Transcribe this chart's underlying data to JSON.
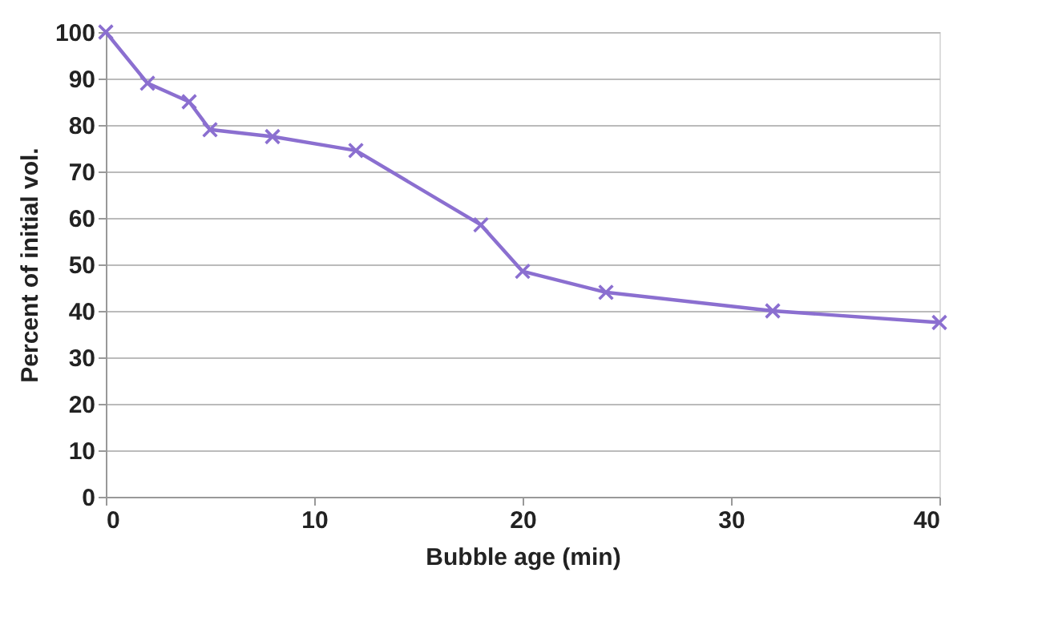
{
  "chart_data": {
    "type": "line",
    "xlabel": "Bubble age (min)",
    "ylabel": "Percent of initial vol.",
    "x": [
      0,
      2,
      4,
      5,
      8,
      12,
      18,
      20,
      24,
      32,
      40
    ],
    "series": [
      {
        "color": "#8b6fd0",
        "values": [
          100,
          89,
          85,
          79,
          77.5,
          74.5,
          58.5,
          48.5,
          44,
          40,
          37.5
        ]
      }
    ],
    "xlim": [
      0,
      40
    ],
    "xticks": [
      0,
      10,
      20,
      30,
      40
    ],
    "ylim": [
      0,
      100
    ],
    "yticks": [
      0,
      10,
      20,
      30,
      40,
      50,
      60,
      70,
      80,
      90,
      100
    ],
    "grid": "y",
    "marker": "cross",
    "line_style": "solid"
  }
}
